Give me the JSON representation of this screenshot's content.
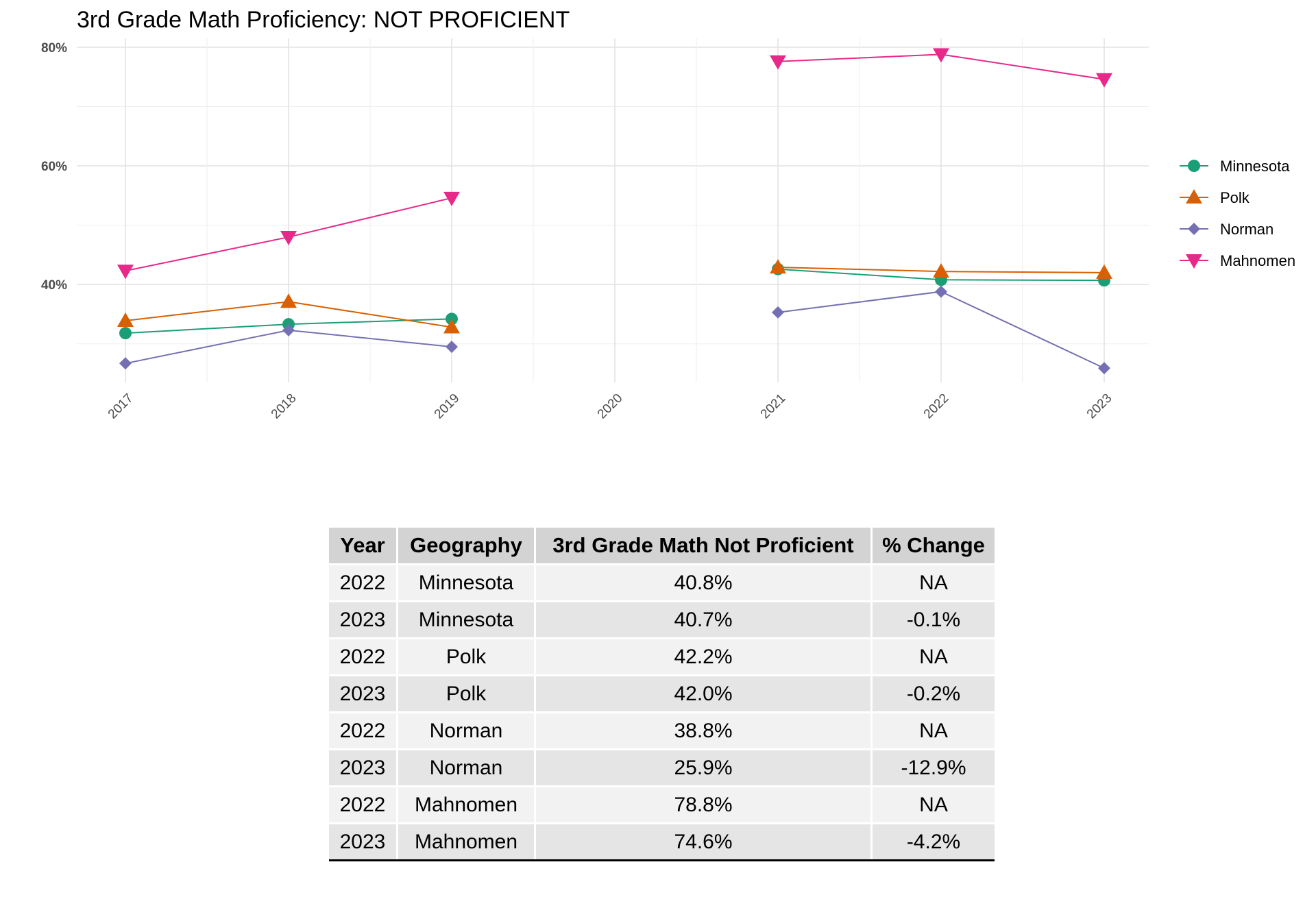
{
  "chart_data": {
    "type": "line",
    "title": "3rd Grade Math Proficiency: NOT PROFICIENT",
    "xlabel": "",
    "ylabel": "",
    "x": [
      "2017",
      "2018",
      "2019",
      "2020",
      "2021",
      "2022",
      "2023"
    ],
    "y_ticks": [
      "40%",
      "60%",
      "80%"
    ],
    "ylim": [
      23.5,
      81.5
    ],
    "grid": true,
    "legend_position": "right",
    "series": [
      {
        "name": "Minnesota",
        "color": "#1b9e77",
        "marker": "circle",
        "values": [
          31.8,
          33.3,
          34.2,
          null,
          42.6,
          40.8,
          40.7
        ]
      },
      {
        "name": "Polk",
        "color": "#d95f02",
        "marker": "triangle-up",
        "values": [
          33.9,
          37.1,
          32.8,
          null,
          42.9,
          42.2,
          42.0
        ]
      },
      {
        "name": "Norman",
        "color": "#7570b3",
        "marker": "diamond",
        "values": [
          26.7,
          32.3,
          29.5,
          null,
          35.3,
          38.8,
          25.9
        ]
      },
      {
        "name": "Mahnomen",
        "color": "#e7298a",
        "marker": "triangle-down",
        "values": [
          42.3,
          48.0,
          54.6,
          null,
          77.6,
          78.8,
          74.6
        ]
      }
    ]
  },
  "table": {
    "headers": [
      "Year",
      "Geography",
      "3rd Grade Math Not Proficient",
      "% Change"
    ],
    "rows": [
      [
        "2022",
        "Minnesota",
        "40.8%",
        "NA"
      ],
      [
        "2023",
        "Minnesota",
        "40.7%",
        "-0.1%"
      ],
      [
        "2022",
        "Polk",
        "42.2%",
        "NA"
      ],
      [
        "2023",
        "Polk",
        "42.0%",
        "-0.2%"
      ],
      [
        "2022",
        "Norman",
        "38.8%",
        "NA"
      ],
      [
        "2023",
        "Norman",
        "25.9%",
        "-12.9%"
      ],
      [
        "2022",
        "Mahnomen",
        "78.8%",
        "NA"
      ],
      [
        "2023",
        "Mahnomen",
        "74.6%",
        "-4.2%"
      ]
    ]
  }
}
